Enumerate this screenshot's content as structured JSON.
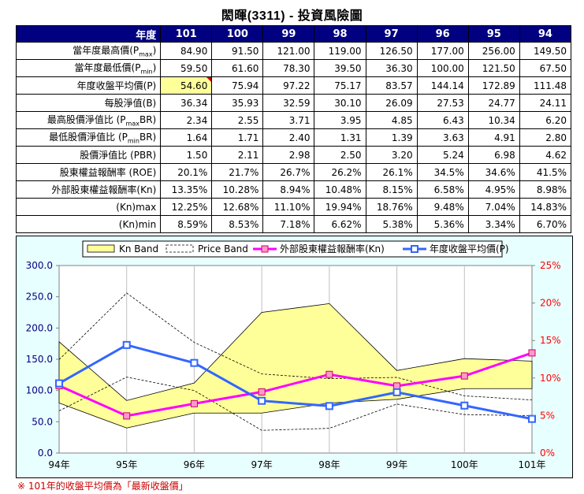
{
  "page": {
    "title": "閎暉(3311) -  投資風險圖",
    "footnote": "※ 101年的收盤平均價為「最新收盤價」"
  },
  "table": {
    "header_label": "年度",
    "years": [
      "101",
      "100",
      "99",
      "98",
      "97",
      "96",
      "95",
      "94"
    ],
    "rows": [
      {
        "label": "當年度最高價(P",
        "sub": "max",
        "tail": ")",
        "values": [
          "84.90",
          "91.50",
          "121.00",
          "119.00",
          "126.50",
          "177.00",
          "256.00",
          "149.50"
        ]
      },
      {
        "label": "當年度最低價(P",
        "sub": "min",
        "tail": ")",
        "values": [
          "59.50",
          "61.60",
          "78.30",
          "39.50",
          "36.30",
          "100.00",
          "121.50",
          "67.50"
        ]
      },
      {
        "label": "年度收盤平均價(P)",
        "sub": "",
        "tail": "",
        "values": [
          "54.60",
          "75.94",
          "97.22",
          "75.17",
          "83.57",
          "144.14",
          "172.89",
          "111.48"
        ],
        "highlight_first": true
      },
      {
        "label": "每股淨值(B)",
        "sub": "",
        "tail": "",
        "values": [
          "36.34",
          "35.93",
          "32.59",
          "30.10",
          "26.09",
          "27.53",
          "24.77",
          "24.11"
        ]
      },
      {
        "label": "最高股價淨值比 (P",
        "sub": "max",
        "tail": "BR)",
        "values": [
          "2.34",
          "2.55",
          "3.71",
          "3.95",
          "4.85",
          "6.43",
          "10.34",
          "6.20"
        ]
      },
      {
        "label": "最低股價淨值比 (P",
        "sub": "min",
        "tail": "BR)",
        "values": [
          "1.64",
          "1.71",
          "2.40",
          "1.31",
          "1.39",
          "3.63",
          "4.91",
          "2.80"
        ]
      },
      {
        "label": "股價淨值比 (PBR)",
        "sub": "",
        "tail": "",
        "values": [
          "1.50",
          "2.11",
          "2.98",
          "2.50",
          "3.20",
          "5.24",
          "6.98",
          "4.62"
        ]
      },
      {
        "label": "股東權益報酬率 (ROE)",
        "sub": "",
        "tail": "",
        "values": [
          "20.1%",
          "21.7%",
          "26.7%",
          "26.2%",
          "26.1%",
          "34.5%",
          "34.6%",
          "41.5%"
        ]
      },
      {
        "label": "外部股東權益報酬率(Kn)",
        "sub": "",
        "tail": "",
        "values": [
          "13.35%",
          "10.28%",
          "8.94%",
          "10.48%",
          "8.15%",
          "6.58%",
          "4.95%",
          "8.98%"
        ]
      },
      {
        "label": "(Kn)max",
        "sub": "",
        "tail": "",
        "values": [
          "12.25%",
          "12.68%",
          "11.10%",
          "19.94%",
          "18.76%",
          "9.48%",
          "7.04%",
          "14.83%"
        ]
      },
      {
        "label": "(Kn)min",
        "sub": "",
        "tail": "",
        "values": [
          "8.59%",
          "8.53%",
          "7.18%",
          "6.62%",
          "5.38%",
          "5.36%",
          "3.34%",
          "6.70%"
        ]
      }
    ]
  },
  "colors": {
    "header_bg": "#000080",
    "kn_band_fill": "#ffff99",
    "kn_line": "#ff00ff",
    "kn_marker": "#ff99cc",
    "price_line": "#3366ff",
    "left_axis_text": "#000080",
    "right_axis_text": "#ff0000"
  },
  "chart_data": {
    "type": "line",
    "categories": [
      "94年",
      "95年",
      "96年",
      "97年",
      "98年",
      "99年",
      "100年",
      "101年"
    ],
    "y_left": {
      "ticks": [
        "0.0",
        "50.0",
        "100.0",
        "150.0",
        "200.0",
        "250.0",
        "300.0"
      ],
      "range": [
        0,
        300
      ]
    },
    "y_right": {
      "ticks": [
        "0%",
        "5%",
        "10%",
        "15%",
        "20%",
        "25%"
      ],
      "range": [
        0,
        25
      ]
    },
    "grid": "vertical",
    "legend": {
      "position": "top",
      "entries": [
        "Kn Band",
        "Price Band",
        "外部股東權益報酬率(Kn)",
        "年度收盤平均價(P)"
      ]
    },
    "kn_band": {
      "upper": [
        178,
        84,
        112,
        225,
        239,
        132,
        151,
        147
      ],
      "lower": [
        80,
        40,
        64,
        64,
        80,
        86,
        103,
        103
      ]
    },
    "price_band": {
      "upper": [
        149.5,
        256.0,
        177.0,
        126.5,
        119.0,
        121.0,
        91.5,
        84.9
      ],
      "lower": [
        67.5,
        121.5,
        100.0,
        36.3,
        39.5,
        78.3,
        61.6,
        59.5
      ]
    },
    "series": [
      {
        "name": "外部股東權益報酬率(Kn)",
        "axis": "right",
        "values": [
          8.98,
          4.95,
          6.58,
          8.15,
          10.48,
          8.94,
          10.28,
          13.35
        ]
      },
      {
        "name": "年度收盤平均價(P)",
        "axis": "left",
        "values": [
          111.48,
          172.89,
          144.14,
          83.57,
          75.17,
          97.22,
          75.94,
          54.6
        ]
      }
    ]
  }
}
